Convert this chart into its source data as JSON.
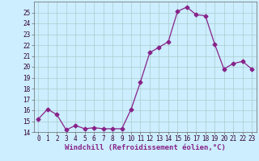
{
  "x": [
    0,
    1,
    2,
    3,
    4,
    5,
    6,
    7,
    8,
    9,
    10,
    11,
    12,
    13,
    14,
    15,
    16,
    17,
    18,
    19,
    20,
    21,
    22,
    23
  ],
  "y": [
    15.2,
    16.1,
    15.6,
    14.2,
    14.6,
    14.3,
    14.4,
    14.3,
    14.3,
    14.3,
    16.1,
    18.6,
    21.3,
    21.8,
    22.3,
    25.1,
    25.5,
    24.8,
    24.7,
    22.1,
    19.8,
    20.3,
    20.5,
    19.8
  ],
  "line_color": "#882288",
  "marker": "D",
  "markersize": 2.5,
  "linewidth": 0.9,
  "xlabel": "Windchill (Refroidissement éolien,°C)",
  "ylabel": "",
  "ylim": [
    14,
    26
  ],
  "xlim": [
    -0.5,
    23.5
  ],
  "yticks": [
    14,
    15,
    16,
    17,
    18,
    19,
    20,
    21,
    22,
    23,
    24,
    25
  ],
  "xticks": [
    0,
    1,
    2,
    3,
    4,
    5,
    6,
    7,
    8,
    9,
    10,
    11,
    12,
    13,
    14,
    15,
    16,
    17,
    18,
    19,
    20,
    21,
    22,
    23
  ],
  "background_color": "#cceeff",
  "grid_color": "#aacccc",
  "tick_label_fontsize": 5.5,
  "xlabel_fontsize": 6.5
}
